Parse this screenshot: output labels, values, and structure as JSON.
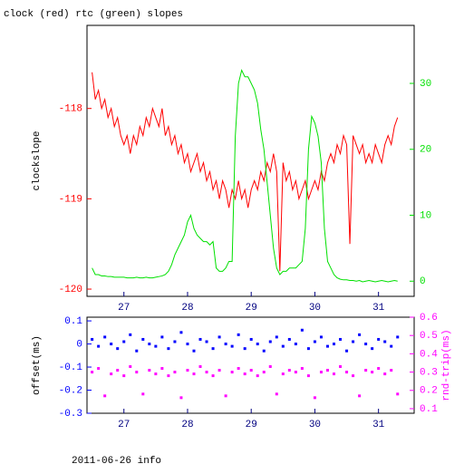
{
  "chart_data": [
    {
      "type": "line",
      "title": "clock (red) rtc (green) slopes",
      "y_label": "clockslope",
      "x": [
        26.5,
        26.55,
        26.6,
        26.65,
        26.7,
        26.75,
        26.8,
        26.85,
        26.9,
        26.95,
        27,
        27.05,
        27.1,
        27.15,
        27.2,
        27.25,
        27.3,
        27.35,
        27.4,
        27.45,
        27.5,
        27.55,
        27.6,
        27.65,
        27.7,
        27.75,
        27.8,
        27.85,
        27.9,
        27.95,
        28,
        28.05,
        28.1,
        28.15,
        28.2,
        28.25,
        28.3,
        28.35,
        28.4,
        28.45,
        28.5,
        28.55,
        28.6,
        28.65,
        28.7,
        28.75,
        28.8,
        28.85,
        28.9,
        28.95,
        29,
        29.05,
        29.1,
        29.15,
        29.2,
        29.25,
        29.3,
        29.35,
        29.4,
        29.45,
        29.5,
        29.55,
        29.6,
        29.65,
        29.7,
        29.75,
        29.8,
        29.85,
        29.9,
        29.95,
        30,
        30.05,
        30.1,
        30.15,
        30.2,
        30.25,
        30.3,
        30.35,
        30.4,
        30.45,
        30.5,
        30.55,
        30.6,
        30.65,
        30.7,
        30.75,
        30.8,
        30.85,
        30.9,
        30.95,
        31,
        31.05,
        31.1,
        31.15,
        31.2,
        31.25,
        31.3
      ],
      "series": [
        {
          "color": "#ff0000",
          "axis": "y",
          "values": [
            -117.6,
            -117.9,
            -117.8,
            -118.0,
            -117.9,
            -118.1,
            -118.0,
            -118.2,
            -118.1,
            -118.3,
            -118.4,
            -118.3,
            -118.5,
            -118.3,
            -118.4,
            -118.2,
            -118.3,
            -118.1,
            -118.2,
            -118.0,
            -118.1,
            -118.2,
            -118.0,
            -118.3,
            -118.2,
            -118.4,
            -118.3,
            -118.5,
            -118.4,
            -118.6,
            -118.5,
            -118.7,
            -118.6,
            -118.5,
            -118.7,
            -118.6,
            -118.8,
            -118.7,
            -118.9,
            -118.8,
            -119.0,
            -118.8,
            -118.9,
            -119.1,
            -118.9,
            -119.0,
            -118.8,
            -119.0,
            -118.9,
            -119.1,
            -118.9,
            -118.8,
            -118.9,
            -118.7,
            -118.8,
            -118.6,
            -118.7,
            -118.5,
            -118.7,
            -119.8,
            -118.6,
            -118.8,
            -118.7,
            -118.9,
            -118.8,
            -119.0,
            -118.9,
            -118.8,
            -119.0,
            -118.9,
            -118.8,
            -118.9,
            -118.7,
            -118.8,
            -118.6,
            -118.5,
            -118.6,
            -118.4,
            -118.5,
            -118.3,
            -118.4,
            -119.5,
            -118.3,
            -118.4,
            -118.5,
            -118.4,
            -118.6,
            -118.5,
            -118.6,
            -118.4,
            -118.5,
            -118.6,
            -118.4,
            -118.3,
            -118.4,
            -118.2,
            -118.1
          ]
        },
        {
          "color": "#00e000",
          "axis": "y2",
          "values": [
            2,
            1,
            1,
            0.8,
            0.8,
            0.7,
            0.7,
            0.6,
            0.6,
            0.6,
            0.6,
            0.5,
            0.5,
            0.5,
            0.6,
            0.5,
            0.5,
            0.6,
            0.5,
            0.5,
            0.6,
            0.7,
            0.8,
            1,
            1.5,
            2.5,
            4,
            5,
            6,
            7,
            9,
            10,
            8,
            7,
            6.5,
            6,
            6,
            5.5,
            6,
            2,
            1.5,
            1.5,
            2,
            3,
            3,
            22,
            30,
            32,
            31,
            31,
            30,
            29,
            27,
            23,
            20,
            15,
            10,
            5,
            2,
            1,
            1.5,
            1.5,
            2,
            2,
            2,
            2.5,
            3,
            8,
            20,
            25,
            24,
            22,
            18,
            8,
            3,
            2,
            1,
            0.5,
            0.3,
            0.2,
            0.2,
            0.1,
            0.1,
            0,
            0.1,
            -0.1,
            0,
            0.1,
            0,
            -0.1,
            0,
            0.1,
            0,
            -0.1,
            0,
            0.1,
            0
          ]
        }
      ],
      "xlim": [
        26.42,
        31.56
      ],
      "xticks": [
        27,
        28,
        29,
        30,
        31
      ],
      "ylim": [
        -120.08,
        -117.08
      ],
      "yticks": [
        -120,
        -119,
        -118
      ],
      "y2lim": [
        -2.3,
        38.8
      ],
      "y2ticks": [
        0,
        10,
        20,
        30
      ]
    },
    {
      "type": "scatter",
      "y_label": "offset(ms)",
      "y2_label": "rnd-trip(ms)",
      "x": [
        26.5,
        26.6,
        26.7,
        26.8,
        26.9,
        27,
        27.1,
        27.2,
        27.3,
        27.4,
        27.5,
        27.6,
        27.7,
        27.8,
        27.9,
        28,
        28.1,
        28.2,
        28.3,
        28.4,
        28.5,
        28.6,
        28.7,
        28.8,
        28.9,
        29,
        29.1,
        29.2,
        29.3,
        29.4,
        29.5,
        29.6,
        29.7,
        29.8,
        29.9,
        30,
        30.1,
        30.2,
        30.3,
        30.4,
        30.5,
        30.6,
        30.7,
        30.8,
        30.9,
        31,
        31.1,
        31.2,
        31.3
      ],
      "series": [
        {
          "color": "#0000ff",
          "axis": "y",
          "values": [
            0.02,
            -0.01,
            0.03,
            0,
            -0.02,
            0.01,
            0.04,
            -0.03,
            0.02,
            0,
            -0.01,
            0.03,
            -0.02,
            0.01,
            0.05,
            0,
            -0.03,
            0.02,
            0.01,
            -0.02,
            0.03,
            0,
            -0.01,
            0.04,
            -0.02,
            0.02,
            0,
            -0.03,
            0.01,
            0.03,
            -0.01,
            0.02,
            0,
            0.06,
            -0.02,
            0.01,
            0.03,
            -0.01,
            0,
            0.02,
            -0.03,
            0.01,
            0.04,
            0,
            -0.02,
            0.02,
            0.01,
            -0.01,
            0.03
          ]
        },
        {
          "color": "#ff00ff",
          "axis": "y2",
          "values": [
            0.3,
            0.32,
            0.17,
            0.29,
            0.31,
            0.28,
            0.33,
            0.3,
            0.18,
            0.31,
            0.29,
            0.32,
            0.28,
            0.3,
            0.16,
            0.31,
            0.29,
            0.33,
            0.3,
            0.28,
            0.31,
            0.17,
            0.3,
            0.32,
            0.29,
            0.31,
            0.28,
            0.3,
            0.33,
            0.18,
            0.29,
            0.31,
            0.3,
            0.32,
            0.28,
            0.16,
            0.3,
            0.31,
            0.29,
            0.33,
            0.3,
            0.28,
            0.17,
            0.31,
            0.3,
            0.32,
            0.29,
            0.31,
            0.18
          ]
        }
      ],
      "xlim": [
        26.42,
        31.56
      ],
      "xticks": [
        27,
        28,
        29,
        30,
        31
      ],
      "ylim": [
        -0.3,
        0.116
      ],
      "yticks": [
        -0.3,
        -0.2,
        -0.1,
        0,
        0.1
      ],
      "y2lim": [
        0.075,
        0.6
      ],
      "y2ticks": [
        0.1,
        0.2,
        0.3,
        0.4,
        0.5,
        0.6
      ]
    }
  ],
  "footer": "2011-06-26 info"
}
